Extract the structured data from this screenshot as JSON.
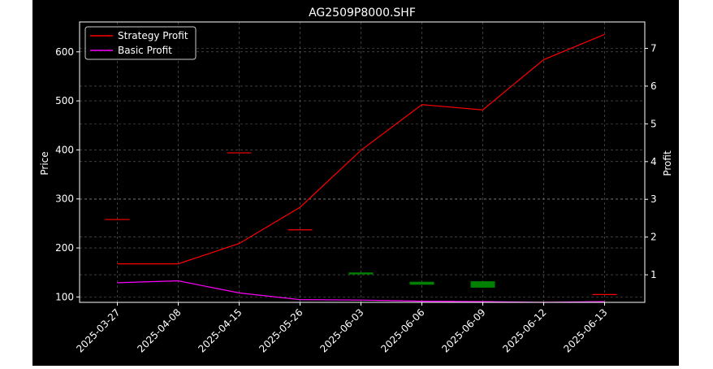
{
  "chart_data": {
    "type": "line",
    "title": "AG2509P8000.SHF",
    "xlabel": "",
    "ylabel_left": "Price",
    "ylabel_right": "Profit",
    "categories": [
      "2025-03-27",
      "2025-04-08",
      "2025-04-15",
      "2025-05-26",
      "2025-06-03",
      "2025-06-06",
      "2025-06-09",
      "2025-06-12",
      "2025-06-13"
    ],
    "ylim_left": [
      89,
      661
    ],
    "yticks_left": [
      100,
      200,
      300,
      400,
      500,
      600
    ],
    "ylim_right": [
      0.27,
      7.7
    ],
    "yticks_right": [
      1,
      2,
      3,
      4,
      5,
      6,
      7
    ],
    "grid": true,
    "legend_position": "top-left",
    "series": [
      {
        "name": "Strategy Profit",
        "axis": "right",
        "color": "#ff0000",
        "values": [
          1.29,
          1.29,
          1.83,
          2.79,
          4.3,
          5.51,
          5.37,
          6.7,
          7.37
        ]
      },
      {
        "name": "Basic Profit",
        "axis": "right",
        "color": "#ff00ff",
        "values": [
          0.79,
          0.84,
          0.52,
          0.34,
          0.33,
          0.3,
          0.29,
          0.27,
          0.29
        ]
      }
    ],
    "price_candles": [
      {
        "category": "2025-03-27",
        "open": 258,
        "close": 258,
        "direction": "flat"
      },
      {
        "category": "2025-04-15",
        "open": 394,
        "close": 394,
        "direction": "flat"
      },
      {
        "category": "2025-05-26",
        "open": 237,
        "close": 237,
        "direction": "flat"
      },
      {
        "category": "2025-06-03",
        "open": 150,
        "close": 146,
        "direction": "down"
      },
      {
        "category": "2025-06-06",
        "open": 131,
        "close": 125,
        "direction": "down"
      },
      {
        "category": "2025-06-09",
        "open": 132,
        "close": 119,
        "direction": "down"
      },
      {
        "category": "2025-06-13",
        "open": 105,
        "close": 105,
        "direction": "flat"
      }
    ],
    "colors": {
      "background": "#000000",
      "text": "#ffffff",
      "grid": "#808080",
      "candle_down": "#008000",
      "candle_flat": "#ff0000"
    }
  }
}
